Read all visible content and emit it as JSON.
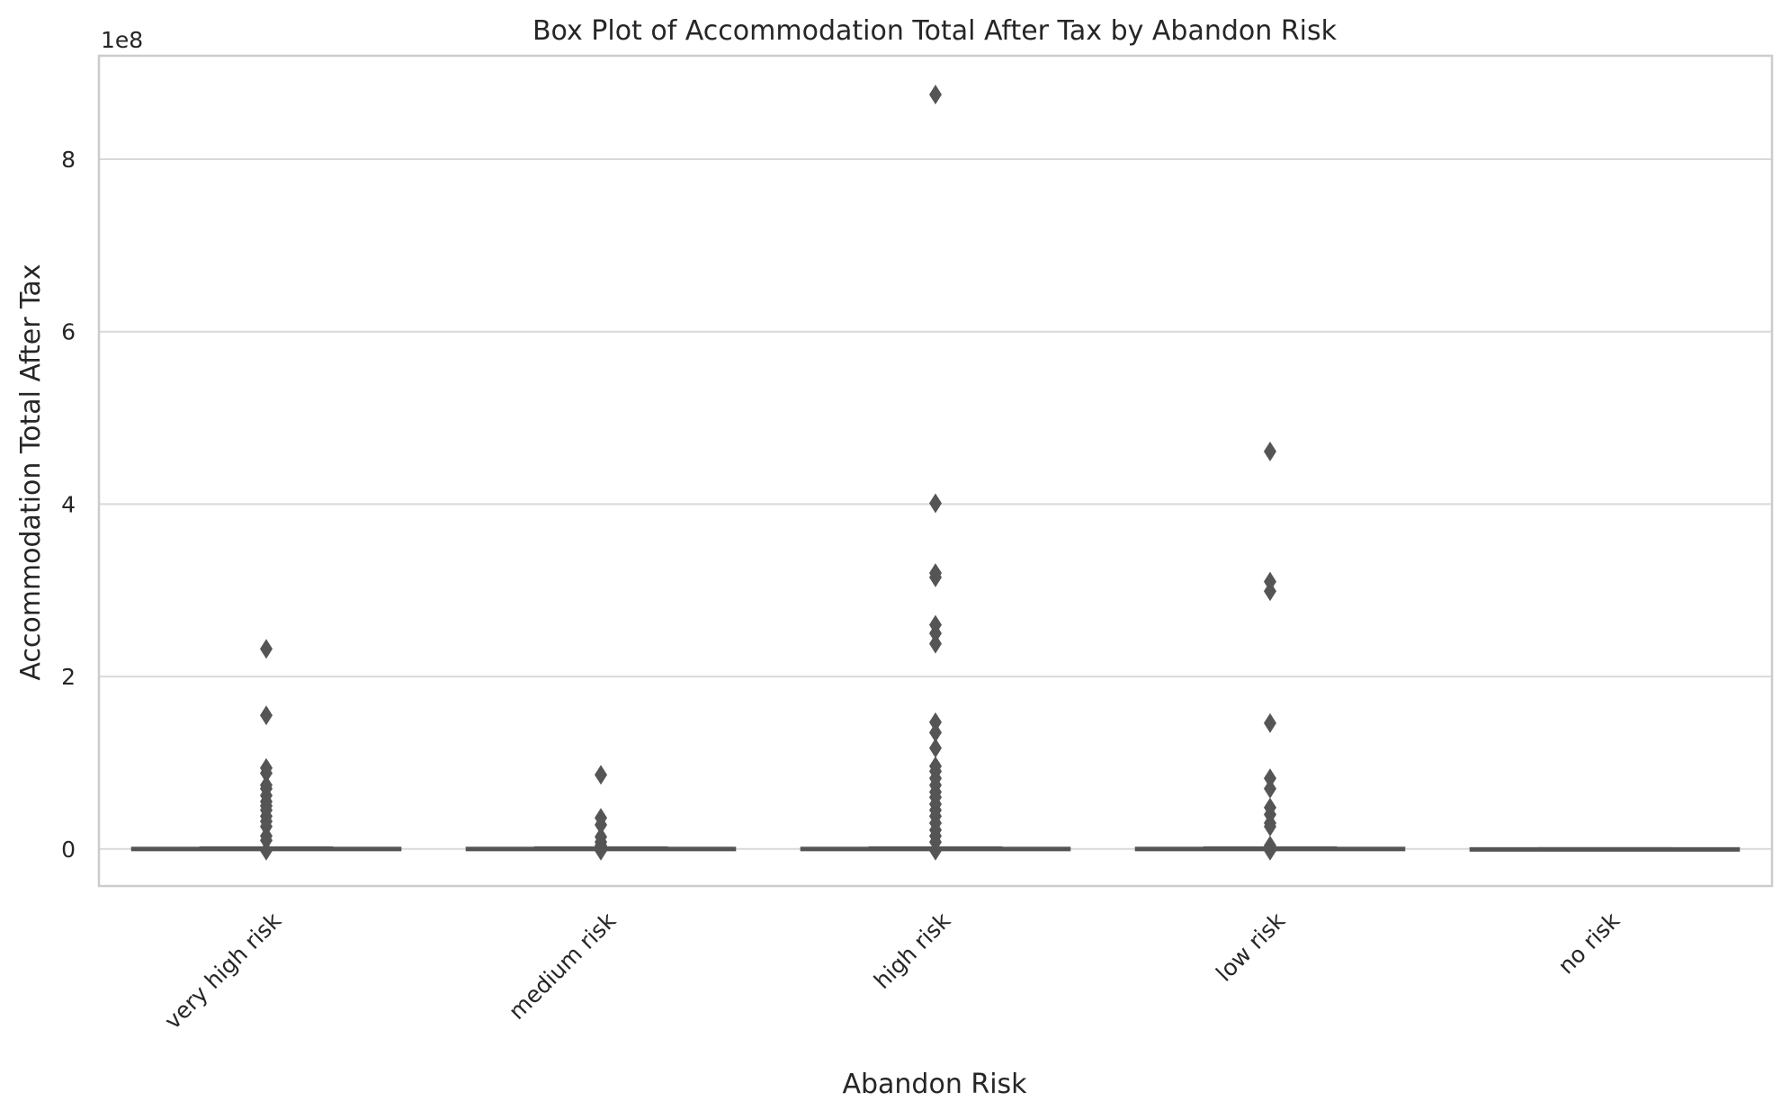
{
  "chart_data": {
    "type": "box",
    "title": "Box Plot of Accommodation Total After Tax by Abandon Risk",
    "xlabel": "Abandon Risk",
    "ylabel": "Accommodation Total After Tax",
    "y_scale_label": "1e8",
    "ylim": [
      -0.43,
      9.2
    ],
    "yticks": [
      0,
      2,
      4,
      6,
      8
    ],
    "grid": true,
    "categories": [
      "very high risk",
      "medium risk",
      "high risk",
      "low risk",
      "no risk"
    ],
    "series": [
      {
        "category": "very high risk",
        "q1": 0,
        "median": 0,
        "q3": 0.01,
        "whisker_low": 0,
        "whisker_high": 0.02,
        "outliers": [
          2.32,
          1.55,
          0.94,
          0.88,
          0.74,
          0.7,
          0.62,
          0.55,
          0.5,
          0.45,
          0.38,
          0.32,
          0.26,
          0.15,
          0.1,
          -0.02
        ]
      },
      {
        "category": "medium risk",
        "q1": 0,
        "median": 0,
        "q3": 0.01,
        "whisker_low": 0,
        "whisker_high": 0.02,
        "outliers": [
          0.86,
          0.36,
          0.28,
          0.14,
          0.08,
          0.04,
          -0.02
        ]
      },
      {
        "category": "high risk",
        "q1": 0,
        "median": 0,
        "q3": 0.01,
        "whisker_low": 0,
        "whisker_high": 0.02,
        "outliers": [
          8.75,
          4.01,
          3.2,
          3.15,
          2.6,
          2.5,
          2.38,
          1.47,
          1.35,
          1.17,
          0.96,
          0.9,
          0.82,
          0.74,
          0.66,
          0.6,
          0.52,
          0.45,
          0.38,
          0.3,
          0.22,
          0.15,
          0.08,
          -0.02
        ]
      },
      {
        "category": "low risk",
        "q1": 0,
        "median": 0,
        "q3": 0.01,
        "whisker_low": 0,
        "whisker_high": 0.02,
        "outliers": [
          4.61,
          3.1,
          2.99,
          1.46,
          0.82,
          0.7,
          0.48,
          0.4,
          0.3,
          0.26,
          0.04,
          -0.02
        ]
      },
      {
        "category": "no risk",
        "q1": 0,
        "median": 0,
        "q3": 0.005,
        "whisker_low": 0,
        "whisker_high": 0.01,
        "outliers": []
      }
    ],
    "colors": {
      "box_line": "#555555",
      "outlier_fill": "#555555",
      "grid": "#d9d9d9",
      "frame": "#cccccc",
      "text": "#262626"
    }
  }
}
